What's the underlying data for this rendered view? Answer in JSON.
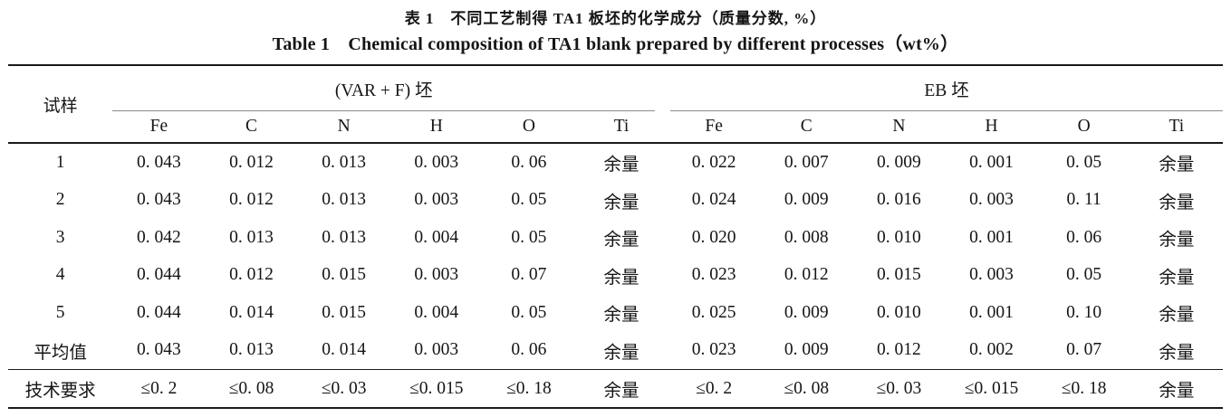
{
  "titles": {
    "zh": "表 1　不同工艺制得 TA1 板坯的化学成分（质量分数, %）",
    "en": "Table 1　Chemical composition of TA1 blank prepared by different processes（wt%）"
  },
  "table": {
    "sample_header": "试样",
    "groups": [
      {
        "label": "(VAR + F) 坯",
        "elements": [
          "Fe",
          "C",
          "N",
          "H",
          "O",
          "Ti"
        ]
      },
      {
        "label": "EB 坯",
        "elements": [
          "Fe",
          "C",
          "N",
          "H",
          "O",
          "Ti"
        ]
      }
    ],
    "rows": [
      {
        "label": "1",
        "varf": [
          "0. 043",
          "0. 012",
          "0. 013",
          "0. 003",
          "0. 06",
          "余量"
        ],
        "eb": [
          "0. 022",
          "0. 007",
          "0. 009",
          "0. 001",
          "0. 05",
          "余量"
        ]
      },
      {
        "label": "2",
        "varf": [
          "0. 043",
          "0. 012",
          "0. 013",
          "0. 003",
          "0. 05",
          "余量"
        ],
        "eb": [
          "0. 024",
          "0. 009",
          "0. 016",
          "0. 003",
          "0. 11",
          "余量"
        ]
      },
      {
        "label": "3",
        "varf": [
          "0. 042",
          "0. 013",
          "0. 013",
          "0. 004",
          "0. 05",
          "余量"
        ],
        "eb": [
          "0. 020",
          "0. 008",
          "0. 010",
          "0. 001",
          "0. 06",
          "余量"
        ]
      },
      {
        "label": "4",
        "varf": [
          "0. 044",
          "0. 012",
          "0. 015",
          "0. 003",
          "0. 07",
          "余量"
        ],
        "eb": [
          "0. 023",
          "0. 012",
          "0. 015",
          "0. 003",
          "0. 05",
          "余量"
        ]
      },
      {
        "label": "5",
        "varf": [
          "0. 044",
          "0. 014",
          "0. 015",
          "0. 004",
          "0. 05",
          "余量"
        ],
        "eb": [
          "0. 025",
          "0. 009",
          "0. 010",
          "0. 001",
          "0. 10",
          "余量"
        ]
      },
      {
        "label": "平均值",
        "varf": [
          "0. 043",
          "0. 013",
          "0. 014",
          "0. 003",
          "0. 06",
          "余量"
        ],
        "eb": [
          "0. 023",
          "0. 009",
          "0. 012",
          "0. 002",
          "0. 07",
          "余量"
        ]
      },
      {
        "label": "技术要求",
        "varf": [
          "≤0. 2",
          "≤0. 08",
          "≤0. 03",
          "≤0. 015",
          "≤0. 18",
          "余量"
        ],
        "eb": [
          "≤0. 2",
          "≤0. 08",
          "≤0. 03",
          "≤0. 015",
          "≤0. 18",
          "余量"
        ]
      }
    ]
  }
}
